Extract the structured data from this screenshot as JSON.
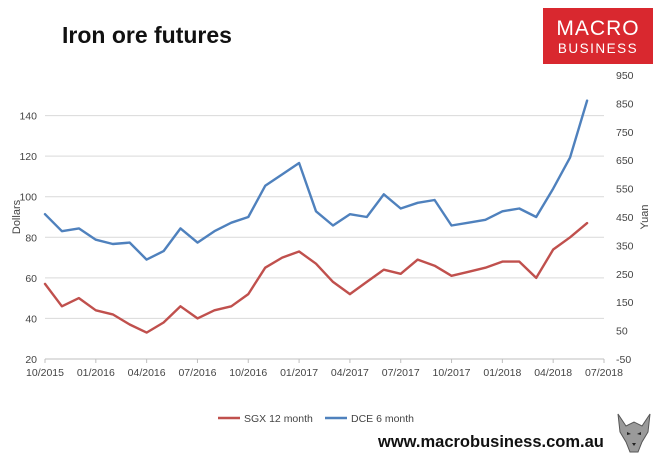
{
  "title": "Iron ore futures",
  "logo": {
    "line1": "MACRO",
    "line2": "BUSINESS"
  },
  "footer": "www.macrobusiness.com.au",
  "colors": {
    "sgx": "#c0504d",
    "dce": "#4f81bd",
    "logo_bg": "#d9282f"
  },
  "icons": {
    "wolf": "wolf-logo-icon"
  },
  "chart_data": {
    "type": "line",
    "title": "Iron ore futures",
    "xlabel": "",
    "ylabel_left": "Dollars",
    "ylabel_right": "Yuan",
    "ylim_left": [
      20,
      160
    ],
    "ylim_right": [
      -50,
      950
    ],
    "yticks_left": [
      "20",
      "40",
      "60",
      "80",
      "100",
      "120",
      "140"
    ],
    "yticks_right": [
      "-50",
      "50",
      "150",
      "250",
      "350",
      "450",
      "550",
      "650",
      "750",
      "850",
      "950"
    ],
    "x_ticks": [
      "10/2015",
      "01/2016",
      "04/2016",
      "07/2016",
      "10/2016",
      "01/2017",
      "04/2017",
      "07/2017",
      "10/2017",
      "01/2018",
      "04/2018",
      "07/2018"
    ],
    "xlim": [
      "2015-10",
      "2018-07"
    ],
    "grid": true,
    "legend": "bottom",
    "series": [
      {
        "name": "SGX 12 month",
        "axis": "left",
        "x": [
          "2015-10",
          "2015-11",
          "2015-12",
          "2016-01",
          "2016-02",
          "2016-03",
          "2016-04",
          "2016-05",
          "2016-06",
          "2016-07",
          "2016-08",
          "2016-09",
          "2016-10",
          "2016-11",
          "2016-12",
          "2017-01",
          "2017-02",
          "2017-03",
          "2017-04",
          "2017-05",
          "2017-06",
          "2017-07",
          "2017-08",
          "2017-09",
          "2017-10",
          "2017-11",
          "2017-12",
          "2018-01",
          "2018-02",
          "2018-03",
          "2018-04",
          "2018-05",
          "2018-06"
        ],
        "values": [
          57,
          46,
          50,
          44,
          42,
          37,
          33,
          38,
          46,
          40,
          44,
          46,
          52,
          65,
          70,
          73,
          67,
          58,
          52,
          58,
          64,
          62,
          69,
          66,
          61,
          63,
          65,
          68,
          68,
          60,
          74,
          80,
          87
        ]
      },
      {
        "name": "DCE 6 month",
        "axis": "right",
        "x": [
          "2015-10",
          "2015-11",
          "2015-12",
          "2016-01",
          "2016-02",
          "2016-03",
          "2016-04",
          "2016-05",
          "2016-06",
          "2016-07",
          "2016-08",
          "2016-09",
          "2016-10",
          "2016-11",
          "2016-12",
          "2017-01",
          "2017-02",
          "2017-03",
          "2017-04",
          "2017-05",
          "2017-06",
          "2017-07",
          "2017-08",
          "2017-09",
          "2017-10",
          "2017-11",
          "2017-12",
          "2018-01",
          "2018-02",
          "2018-03",
          "2018-04",
          "2018-05",
          "2018-06"
        ],
        "values": [
          460,
          400,
          410,
          370,
          355,
          360,
          300,
          330,
          410,
          360,
          400,
          430,
          450,
          560,
          600,
          640,
          470,
          420,
          460,
          450,
          530,
          480,
          500,
          510,
          420,
          430,
          440,
          470,
          480,
          450,
          550,
          660,
          860
        ]
      }
    ]
  }
}
